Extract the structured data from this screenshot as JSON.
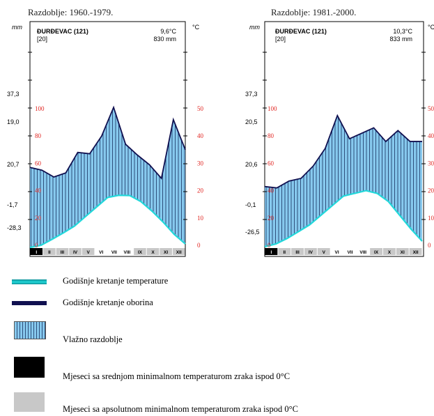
{
  "chart_data": [
    {
      "type": "area",
      "title": "Razdoblje: 1960.-1979.",
      "station": "ĐURĐEVAC (121)",
      "years": "[20]",
      "annual_temp": "9,6°C",
      "annual_precip": "830 mm",
      "left_unit": "mm",
      "right_unit": "°C",
      "left_extra_labels": [
        "37,3",
        "19,0",
        "20,7",
        "-1,7",
        "-28,3"
      ],
      "precip_ticks": [
        "100",
        "80",
        "60",
        "40",
        "20",
        "0"
      ],
      "temp_ticks": [
        "50",
        "40",
        "30",
        "20",
        "10",
        "0"
      ],
      "months": [
        "I",
        "II",
        "III",
        "IV",
        "V",
        "VI",
        "VII",
        "VIII",
        "IX",
        "X",
        "XI",
        "XII"
      ],
      "month_status": [
        "black",
        "grey",
        "grey",
        "grey",
        "grey",
        "none",
        "none",
        "none",
        "grey",
        "grey",
        "grey",
        "grey"
      ],
      "ylim_precip": [
        0,
        100
      ],
      "ylim_temp": [
        0,
        50
      ],
      "precip_mm": [
        57,
        55,
        50,
        53,
        68,
        67,
        80,
        101,
        74,
        66,
        59,
        49,
        92,
        70
      ],
      "temp_c": [
        -0.8,
        0,
        2.2,
        4.5,
        7,
        10.5,
        14,
        17.5,
        18.3,
        18.2,
        16,
        12.5,
        8.5,
        4,
        0.5
      ]
    },
    {
      "type": "area",
      "title": "Razdoblje:  1981.-2000.",
      "station": "ĐURĐEVAC (121)",
      "years": "[20]",
      "annual_temp": "10,3°C",
      "annual_precip": "833 mm",
      "left_unit": "mm",
      "right_unit": "°C",
      "left_extra_labels": [
        "37,3",
        "20,5",
        "20,6",
        "-0,1",
        "-26,5"
      ],
      "precip_ticks": [
        "100",
        "80",
        "60",
        "40",
        "20",
        "0"
      ],
      "temp_ticks": [
        "50",
        "40",
        "30",
        "20",
        "10",
        "0"
      ],
      "months": [
        "I",
        "II",
        "III",
        "IV",
        "V",
        "VI",
        "VII",
        "VIII",
        "IX",
        "X",
        "XI",
        "XII"
      ],
      "month_status": [
        "black",
        "grey",
        "grey",
        "grey",
        "grey",
        "none",
        "none",
        "none",
        "grey",
        "grey",
        "grey",
        "grey"
      ],
      "ylim_precip": [
        0,
        100
      ],
      "ylim_temp": [
        0,
        50
      ],
      "precip_mm": [
        43,
        42,
        47,
        49,
        58,
        71,
        95,
        78,
        82,
        86,
        76,
        84,
        76,
        76
      ],
      "temp_c": [
        -0.5,
        0.5,
        2.5,
        5,
        7.5,
        11,
        14.5,
        18,
        19,
        20,
        19,
        16,
        11,
        6,
        1.5
      ]
    }
  ],
  "legend": {
    "items": [
      {
        "label": "Godišnje kretanje temperature"
      },
      {
        "label": "Godišnje kretanje oborina"
      },
      {
        "label": "Vlažno razdoblje"
      },
      {
        "label": "Mjeseci sa srednjom minimalnom temperaturom zraka ispod 0°C"
      },
      {
        "label": "Mjeseci sa apsolutnom minimalnom temperaturom zraka ispod 0°C"
      }
    ]
  },
  "colors": {
    "humid_fill": "#87c9ee",
    "precip_line": "#101050",
    "temp_line": "#22d8da",
    "axis_red": "#e0221e",
    "frost_black": "#000000",
    "frost_grey": "#c8c8c8"
  }
}
